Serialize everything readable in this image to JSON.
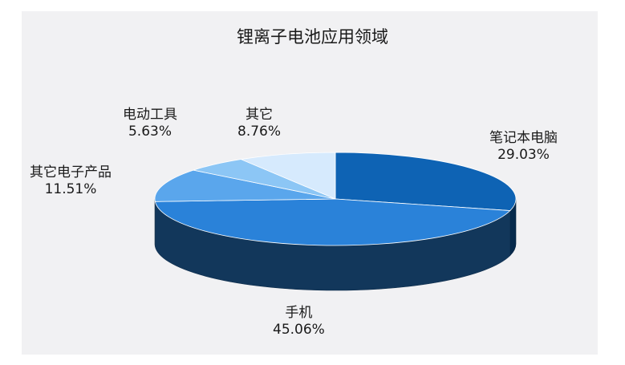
{
  "chart_data": {
    "type": "pie",
    "title": "锂离子电池应用领域",
    "slices": [
      {
        "label": "笔记本电脑",
        "value": 29.03,
        "value_label": "29.03%",
        "color": "#0e63b4"
      },
      {
        "label": "手机",
        "value": 45.06,
        "value_label": "45.06%",
        "color": "#2a82d9"
      },
      {
        "label": "其它电子产品",
        "value": 11.51,
        "value_label": "11.51%",
        "color": "#5aa6ec"
      },
      {
        "label": "电动工具",
        "value": 5.63,
        "value_label": "5.63%",
        "color": "#8cc6f5"
      },
      {
        "label": "其它",
        "value": 8.76,
        "value_label": "8.76%",
        "color": "#d6eafd"
      }
    ],
    "style": "3d"
  },
  "background_color": "#f1f1f3"
}
